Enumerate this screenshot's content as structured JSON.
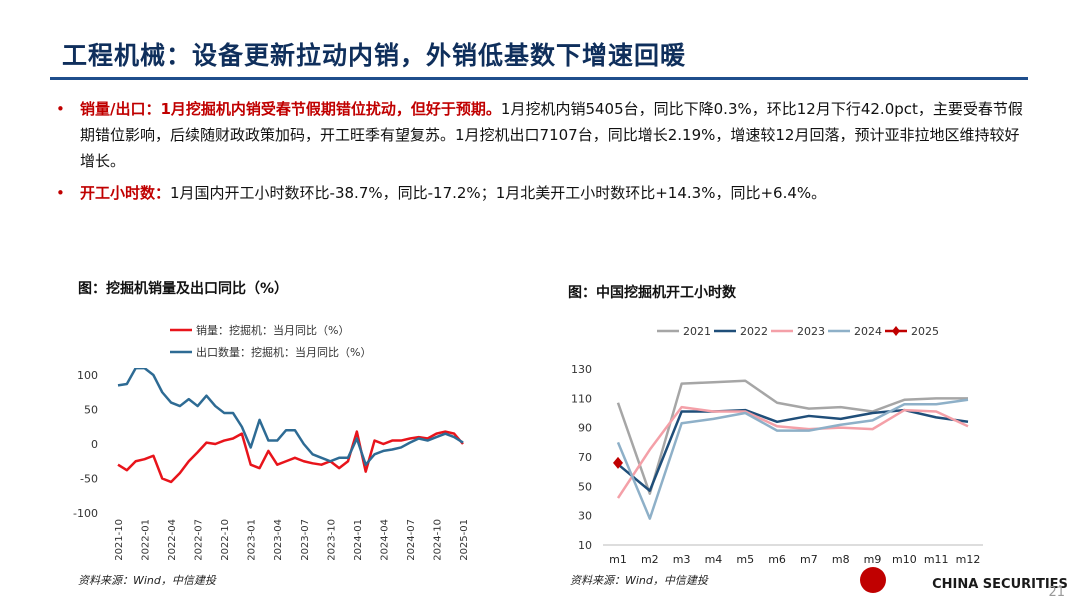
{
  "header": {
    "title": "工程机械：设备更新拉动内销，外销低基数下增速回暖"
  },
  "bullets": [
    {
      "lead": "销量/出口：1月挖掘机内销受春节假期错位扰动，但好于预期。",
      "text": "1月挖机内销5405台，同比下降0.3%，环比12月下行42.0pct，主要受春节假期错位影响，后续随财政政策加码，开工旺季有望复苏。1月挖机出口7107台，同比增长2.19%，增速较12月回落，预计亚非拉地区维持较好增长。"
    },
    {
      "lead": "开工小时数：",
      "text": "1月国内开工小时数环比-38.7%，同比-17.2%；1月北美开工小时数环比+14.3%，同比+6.4%。"
    }
  ],
  "chart_data": [
    {
      "type": "line",
      "title": "图：挖掘机销量及出口同比（%）",
      "source": "资料来源：Wind，中信建投",
      "categories": [
        "2021-10",
        null,
        null,
        "2022-01",
        null,
        null,
        "2022-04",
        null,
        null,
        "2022-07",
        null,
        null,
        "2022-10",
        null,
        null,
        "2023-01",
        null,
        null,
        "2023-04",
        null,
        null,
        "2023-07",
        null,
        null,
        "2023-10",
        null,
        null,
        "2024-01",
        null,
        null,
        "2024-04",
        null,
        null,
        "2024-07",
        null,
        null,
        "2024-10",
        null,
        null,
        "2025-01"
      ],
      "series": [
        {
          "name": "销量：挖掘机：当月同比（%）",
          "color": "#e8141b",
          "values": [
            -30,
            -38,
            -25,
            -22,
            -17,
            -50,
            -55,
            -42,
            -25,
            -12,
            2,
            0,
            5,
            8,
            15,
            -30,
            -35,
            -10,
            -30,
            -25,
            -20,
            -25,
            -28,
            -30,
            -25,
            -35,
            -25,
            18,
            -40,
            5,
            0,
            5,
            5,
            8,
            10,
            8,
            15,
            18,
            15,
            0
          ]
        },
        {
          "name": "出口数量：挖掘机：当月同比（%）",
          "color": "#2e6b94",
          "values": [
            85,
            87,
            110,
            110,
            100,
            75,
            60,
            55,
            65,
            55,
            70,
            55,
            45,
            45,
            25,
            -5,
            35,
            5,
            5,
            20,
            20,
            0,
            -15,
            -20,
            -25,
            -20,
            -20,
            8,
            -30,
            -15,
            -10,
            -8,
            -5,
            2,
            8,
            5,
            10,
            15,
            10,
            2
          ]
        }
      ],
      "ylim": [
        -100,
        100
      ],
      "yticks": [
        -100,
        -50,
        0,
        50,
        100
      ],
      "grid": false
    },
    {
      "type": "line",
      "title": "图：中国挖掘机开工小时数",
      "source": "资料来源：Wind，中信建投",
      "categories": [
        "m1",
        "m2",
        "m3",
        "m4",
        "m5",
        "m6",
        "m7",
        "m8",
        "m9",
        "m10",
        "m11",
        "m12"
      ],
      "series": [
        {
          "name": "2021",
          "color": "#a6a6a6",
          "values": [
            107,
            45,
            120,
            121,
            122,
            107,
            103,
            104,
            101,
            109,
            110,
            110
          ]
        },
        {
          "name": "2022",
          "color": "#1f4e79",
          "values": [
            65,
            47,
            101,
            101,
            102,
            94,
            98,
            96,
            100,
            102,
            97,
            94
          ]
        },
        {
          "name": "2023",
          "color": "#f4a0a8",
          "values": [
            42,
            75,
            104,
            101,
            101,
            91,
            89,
            90,
            89,
            102,
            101,
            91
          ]
        },
        {
          "name": "2024",
          "color": "#8eb0c8",
          "values": [
            80,
            28,
            93,
            96,
            100,
            88,
            88,
            92,
            95,
            106,
            106,
            109
          ]
        },
        {
          "name": "2025",
          "color": "#c00000",
          "values": [
            66,
            null,
            null,
            null,
            null,
            null,
            null,
            null,
            null,
            null,
            null,
            null
          ]
        }
      ],
      "ylim": [
        10,
        130
      ],
      "yticks": [
        10,
        30,
        50,
        70,
        90,
        110,
        130
      ],
      "grid": false
    }
  ],
  "footer": {
    "logo": "CHINA SECURITIES",
    "page": "21"
  }
}
